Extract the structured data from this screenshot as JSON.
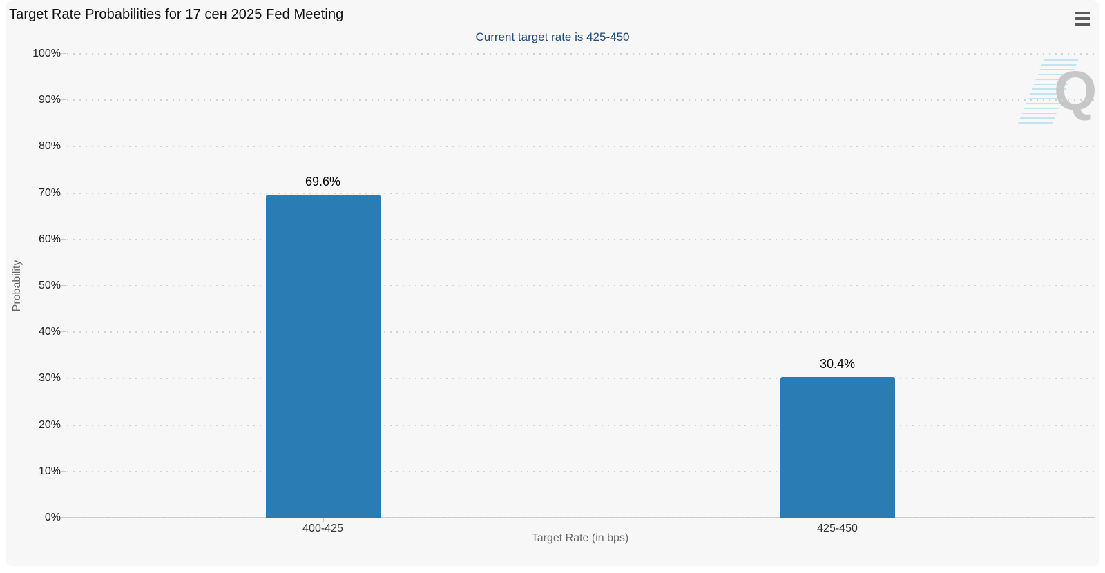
{
  "chart_data": {
    "type": "bar",
    "title": "Target Rate Probabilities for 17 сен 2025 Fed Meeting",
    "subtitle": "Current target rate is 425-450",
    "categories": [
      "400-425",
      "425-450"
    ],
    "values": [
      69.6,
      30.4
    ],
    "value_labels": [
      "69.6%",
      "30.4%"
    ],
    "xlabel": "Target Rate (in bps)",
    "ylabel": "Probability",
    "ylim": [
      0,
      100
    ],
    "ytick_step": 10,
    "ytick_suffix": "%",
    "grid": "horizontal-dotted",
    "legend": "none"
  },
  "watermark": {
    "letter": "Q"
  },
  "menu": {
    "icon": "hamburger-icon"
  },
  "colors": {
    "page_background": "#ffffff",
    "chart_background": "#f7f7f7",
    "bar": "#2a7cb4",
    "subtitle_text": "#234b7f",
    "axis_line": "#c9c9c9",
    "grid_dots": "#d2d2d2",
    "axis_title_text": "#666666",
    "tick_label_text": "#222222"
  }
}
